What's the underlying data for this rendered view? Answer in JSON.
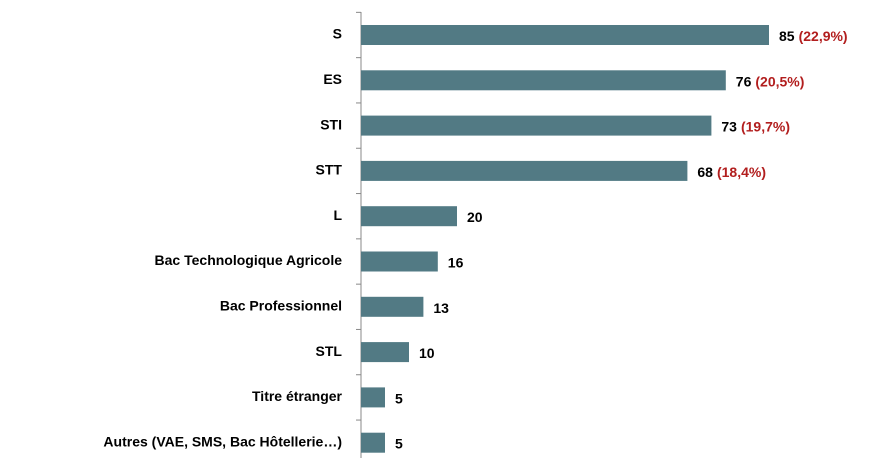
{
  "chart_data": {
    "type": "barh",
    "categories": [
      "S",
      "ES",
      "STI",
      "STT",
      "L",
      "Bac Technologique  Agricole",
      "Bac Professionnel",
      "STL",
      "Titre étranger",
      "Autres (VAE,  SMS, Bac Hôtellerie…)"
    ],
    "values": [
      85,
      76,
      73,
      68,
      20,
      16,
      13,
      10,
      5,
      5
    ],
    "share_labels": [
      "(22,9%)",
      "(20,5%)",
      "(19,7%)",
      "(18,4%)",
      null,
      null,
      null,
      null,
      null,
      null
    ],
    "color": "#527a84",
    "share_color": "#b21e1e"
  }
}
